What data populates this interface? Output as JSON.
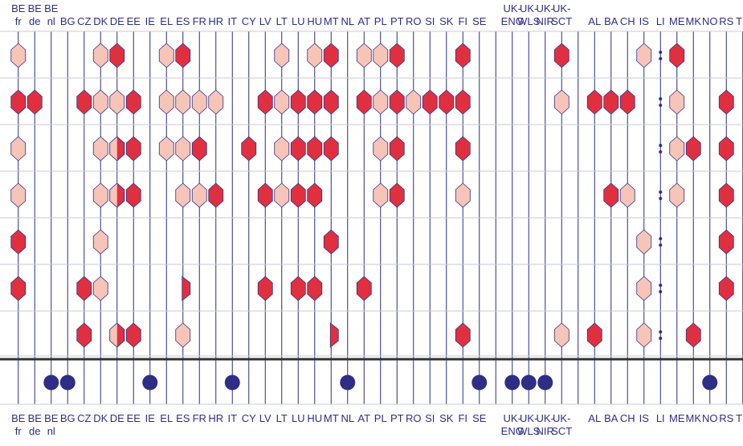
{
  "colors": {
    "line": "#2e2e86",
    "strong": "#e0303f",
    "light": "#f7c4b8",
    "circle": "#2e2e86",
    "separator": "#333333"
  },
  "legend_states": {
    "S": "strong",
    "L": "light",
    "H": "half (light/strong)",
    "P": "partial strong",
    "D": "ellipsis / not applicable",
    "O": "marked (circle)"
  },
  "top_labels": [
    [
      "BE",
      "fr"
    ],
    [
      "BE",
      "de"
    ],
    [
      "BE",
      "nl"
    ],
    [
      "",
      "BG"
    ],
    [
      "",
      "CZ"
    ],
    [
      "",
      "DK"
    ],
    [
      "",
      "DE"
    ],
    [
      "",
      "EE"
    ],
    [
      "",
      "IE"
    ],
    [
      "",
      "EL"
    ],
    [
      "",
      "ES"
    ],
    [
      "",
      "FR"
    ],
    [
      "",
      "HR"
    ],
    [
      "",
      "IT"
    ],
    [
      "",
      "CY"
    ],
    [
      "",
      "LV"
    ],
    [
      "",
      "LT"
    ],
    [
      "",
      "LU"
    ],
    [
      "",
      "HU"
    ],
    [
      "",
      "MT"
    ],
    [
      "",
      "NL"
    ],
    [
      "",
      "AT"
    ],
    [
      "",
      "PL"
    ],
    [
      "",
      "PT"
    ],
    [
      "",
      "RO"
    ],
    [
      "",
      "SI"
    ],
    [
      "",
      "SK"
    ],
    [
      "",
      "FI"
    ],
    [
      "",
      "SE"
    ],
    [
      "",
      ""
    ],
    [
      "UK-",
      "ENG"
    ],
    [
      "UK-",
      "WLS"
    ],
    [
      "UK-",
      "NIR"
    ],
    [
      "UK-",
      "SCT"
    ],
    [
      "",
      ""
    ],
    [
      "",
      "AL"
    ],
    [
      "",
      "BA"
    ],
    [
      "",
      "CH"
    ],
    [
      "",
      "IS"
    ],
    [
      "",
      "LI"
    ],
    [
      "",
      "ME"
    ],
    [
      "",
      "MK"
    ],
    [
      "",
      "NO"
    ],
    [
      "",
      "RS"
    ],
    [
      "",
      "TR"
    ]
  ],
  "bottom_labels": [
    [
      "BE",
      "fr"
    ],
    [
      "BE",
      "de"
    ],
    [
      "BE",
      "nl"
    ],
    [
      "BG",
      ""
    ],
    [
      "CZ",
      ""
    ],
    [
      "DK",
      ""
    ],
    [
      "DE",
      ""
    ],
    [
      "EE",
      ""
    ],
    [
      "IE",
      ""
    ],
    [
      "EL",
      ""
    ],
    [
      "ES",
      ""
    ],
    [
      "FR",
      ""
    ],
    [
      "HR",
      ""
    ],
    [
      "IT",
      ""
    ],
    [
      "CY",
      ""
    ],
    [
      "LV",
      ""
    ],
    [
      "LT",
      ""
    ],
    [
      "LU",
      ""
    ],
    [
      "HU",
      ""
    ],
    [
      "MT",
      ""
    ],
    [
      "NL",
      ""
    ],
    [
      "AT",
      ""
    ],
    [
      "PL",
      ""
    ],
    [
      "PT",
      ""
    ],
    [
      "RO",
      ""
    ],
    [
      "SI",
      ""
    ],
    [
      "SK",
      ""
    ],
    [
      "FI",
      ""
    ],
    [
      "SE",
      ""
    ],
    [
      "",
      ""
    ],
    [
      "UK-",
      "ENG"
    ],
    [
      "UK-",
      "WLS"
    ],
    [
      "UK-",
      "NIR"
    ],
    [
      "UK-",
      "SCT"
    ],
    [
      "",
      ""
    ],
    [
      "AL",
      ""
    ],
    [
      "BA",
      ""
    ],
    [
      "CH",
      ""
    ],
    [
      "IS",
      ""
    ],
    [
      "LI",
      ""
    ],
    [
      "ME",
      ""
    ],
    [
      "MK",
      ""
    ],
    [
      "NO",
      ""
    ],
    [
      "RS",
      ""
    ],
    [
      "TR",
      ""
    ]
  ],
  "rows": [
    [
      "L",
      "",
      "",
      "",
      "",
      "L",
      "S",
      "",
      "",
      "L",
      "S",
      "",
      "",
      "",
      "",
      "",
      "L",
      "",
      "L",
      "S",
      "",
      "L",
      "L",
      "S",
      "",
      "",
      "",
      "S",
      "",
      "",
      "",
      "",
      "",
      "S",
      "",
      "",
      "",
      "",
      "L",
      "D",
      "S",
      "",
      "",
      "",
      ""
    ],
    [
      "S",
      "S",
      "",
      "",
      "S",
      "L",
      "L",
      "S",
      "",
      "L",
      "L",
      "L",
      "L",
      "",
      "",
      "S",
      "L",
      "S",
      "S",
      "S",
      "",
      "S",
      "L",
      "S",
      "L",
      "S",
      "S",
      "S",
      "",
      "",
      "",
      "",
      "",
      "L",
      "",
      "S",
      "S",
      "S",
      "",
      "D",
      "L",
      "",
      "",
      "S",
      ""
    ],
    [
      "L",
      "",
      "",
      "",
      "",
      "L",
      "H",
      "S",
      "",
      "L",
      "L",
      "S",
      "",
      "",
      "S",
      "",
      "L",
      "S",
      "S",
      "S",
      "",
      "",
      "L",
      "S",
      "",
      "",
      "",
      "S",
      "",
      "",
      "",
      "",
      "",
      "",
      "",
      "",
      "",
      "",
      "",
      "D",
      "L",
      "S",
      "",
      "S",
      ""
    ],
    [
      "L",
      "",
      "",
      "",
      "",
      "L",
      "H",
      "S",
      "",
      "",
      "L",
      "L",
      "S",
      "",
      "",
      "S",
      "L",
      "S",
      "S",
      "",
      "",
      "",
      "L",
      "S",
      "",
      "",
      "",
      "L",
      "",
      "",
      "",
      "",
      "",
      "",
      "",
      "",
      "S",
      "L",
      "",
      "D",
      "L",
      "",
      "",
      "S",
      ""
    ],
    [
      "S",
      "",
      "",
      "",
      "",
      "L",
      "",
      "",
      "",
      "",
      "",
      "",
      "",
      "",
      "",
      "",
      "",
      "",
      "",
      "S",
      "",
      "",
      "",
      "",
      "",
      "",
      "",
      "",
      "",
      "",
      "",
      "",
      "",
      "",
      "",
      "",
      "",
      "",
      "L",
      "D",
      "",
      "",
      "",
      "S",
      ""
    ],
    [
      "S",
      "",
      "",
      "",
      "S",
      "L",
      "",
      "",
      "",
      "",
      "P",
      "",
      "",
      "",
      "",
      "S",
      "",
      "S",
      "S",
      "",
      "",
      "S",
      "",
      "",
      "",
      "",
      "",
      "",
      "",
      "",
      "",
      "",
      "",
      "",
      "",
      "",
      "",
      "",
      "L",
      "D",
      "",
      "",
      "",
      "S",
      ""
    ],
    [
      "",
      "",
      "",
      "",
      "S",
      "",
      "H",
      "S",
      "",
      "",
      "L",
      "",
      "",
      "",
      "",
      "",
      "",
      "",
      "",
      "P",
      "",
      "",
      "",
      "",
      "",
      "",
      "",
      "S",
      "",
      "",
      "",
      "",
      "",
      "L",
      "",
      "S",
      "",
      "",
      "L",
      "D",
      "",
      "S",
      "",
      "",
      ""
    ]
  ],
  "bottom_row": [
    "",
    "",
    "O",
    "O",
    "",
    "",
    "",
    "",
    "O",
    "",
    "",
    "",
    "",
    "O",
    "",
    "",
    "",
    "",
    "",
    "",
    "O",
    "",
    "",
    "",
    "",
    "",
    "",
    "",
    "O",
    "",
    "O",
    "O",
    "O",
    "",
    "",
    "",
    "",
    "",
    "",
    "",
    "",
    "",
    "O",
    "",
    ""
  ]
}
